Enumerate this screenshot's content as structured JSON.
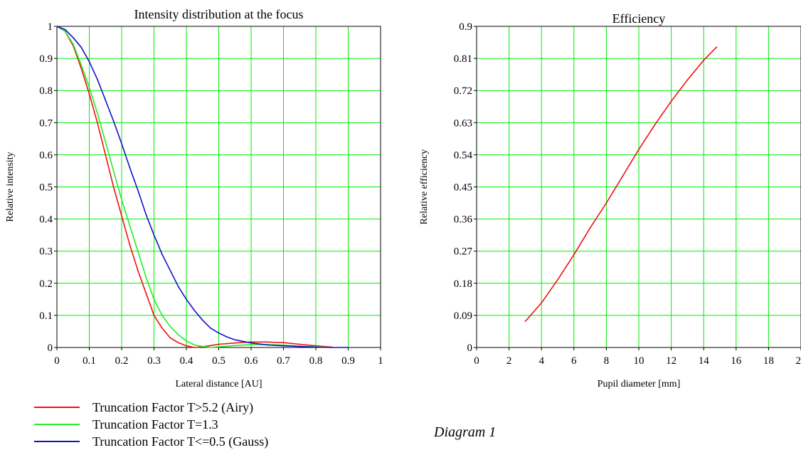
{
  "caption": "Diagram 1",
  "colors": {
    "grid": "#00ee00",
    "axis": "#000000",
    "airy": "#ee1111",
    "t13": "#22ee22",
    "gauss": "#1111cc"
  },
  "chart_data": [
    {
      "type": "line",
      "title": "Intensity distribution at the focus",
      "xlabel": "Lateral distance [AU]",
      "ylabel": "Relative intensity",
      "xlim": [
        0,
        1
      ],
      "ylim": [
        0,
        1
      ],
      "grid": true,
      "x_ticks": [
        0,
        0.1,
        0.2,
        0.3,
        0.4,
        0.5,
        0.6,
        0.7,
        0.8,
        0.9,
        1
      ],
      "x_tick_labels": [
        "0",
        "0.1",
        "0.2",
        "0.3",
        "0.4",
        "0.5",
        "0.6",
        "0.7",
        "0.8",
        "0.9",
        "1"
      ],
      "y_ticks": [
        0,
        0.1,
        0.2,
        0.3,
        0.4,
        0.5,
        0.6,
        0.7,
        0.8,
        0.9,
        1
      ],
      "y_tick_labels": [
        "0",
        "0.1",
        "0.2",
        "0.3",
        "0.4",
        "0.5",
        "0.6",
        "0.7",
        "0.8",
        "0.9",
        "1"
      ],
      "legend_position": "below",
      "series": [
        {
          "name": "Truncation Factor  T>5.2 (Airy)",
          "color": "#ee1111",
          "x": [
            0,
            0.025,
            0.05,
            0.075,
            0.1,
            0.125,
            0.15,
            0.175,
            0.2,
            0.225,
            0.25,
            0.275,
            0.3,
            0.325,
            0.35,
            0.375,
            0.4,
            0.425,
            0.45,
            0.475,
            0.5,
            0.55,
            0.6,
            0.65,
            0.7,
            0.75,
            0.8,
            0.85
          ],
          "y": [
            1.0,
            0.985,
            0.94,
            0.87,
            0.79,
            0.7,
            0.6,
            0.5,
            0.41,
            0.32,
            0.24,
            0.17,
            0.1,
            0.06,
            0.03,
            0.015,
            0.005,
            0.0,
            0.002,
            0.006,
            0.01,
            0.014,
            0.017,
            0.017,
            0.015,
            0.01,
            0.005,
            0.001
          ]
        },
        {
          "name": "Truncation Factor  T=1.3",
          "color": "#22ee22",
          "x": [
            0,
            0.025,
            0.05,
            0.075,
            0.1,
            0.125,
            0.15,
            0.175,
            0.2,
            0.225,
            0.25,
            0.275,
            0.3,
            0.325,
            0.35,
            0.375,
            0.4,
            0.425,
            0.45,
            0.475,
            0.5,
            0.55,
            0.6,
            0.65,
            0.7,
            0.75,
            0.8,
            0.85
          ],
          "y": [
            1.0,
            0.985,
            0.945,
            0.88,
            0.81,
            0.73,
            0.64,
            0.55,
            0.46,
            0.38,
            0.3,
            0.22,
            0.15,
            0.1,
            0.065,
            0.04,
            0.02,
            0.008,
            0.003,
            0.0,
            0.002,
            0.006,
            0.009,
            0.009,
            0.007,
            0.004,
            0.002,
            0.0
          ]
        },
        {
          "name": "Truncation Factor  T<=0.5 (Gauss)",
          "color": "#1111cc",
          "x": [
            0,
            0.025,
            0.05,
            0.075,
            0.1,
            0.125,
            0.15,
            0.175,
            0.2,
            0.225,
            0.25,
            0.275,
            0.3,
            0.325,
            0.35,
            0.375,
            0.4,
            0.425,
            0.45,
            0.475,
            0.5,
            0.525,
            0.55,
            0.6,
            0.65,
            0.7,
            0.75,
            0.8,
            0.85,
            0.9
          ],
          "y": [
            1.0,
            0.99,
            0.965,
            0.935,
            0.89,
            0.835,
            0.77,
            0.705,
            0.635,
            0.56,
            0.49,
            0.415,
            0.35,
            0.29,
            0.24,
            0.19,
            0.15,
            0.115,
            0.085,
            0.06,
            0.045,
            0.033,
            0.024,
            0.014,
            0.008,
            0.005,
            0.003,
            0.001,
            0.0,
            0.0
          ]
        }
      ]
    },
    {
      "type": "line",
      "title": "Efficiency",
      "xlabel": "Pupil diameter [mm]",
      "ylabel": "Relative efficiency",
      "xlim": [
        0,
        20
      ],
      "ylim": [
        0,
        0.9
      ],
      "grid": true,
      "x_ticks": [
        0,
        2,
        4,
        6,
        8,
        10,
        12,
        14,
        16,
        18,
        20
      ],
      "x_tick_labels": [
        "0",
        "2",
        "4",
        "6",
        "8",
        "10",
        "12",
        "14",
        "16",
        "18",
        "20"
      ],
      "y_ticks": [
        0,
        0.09,
        0.18,
        0.27,
        0.36,
        0.45,
        0.54,
        0.63,
        0.72,
        0.81,
        0.9
      ],
      "y_tick_labels": [
        "0",
        "0.09",
        "0.18",
        "0.27",
        "0.36",
        "0.45",
        "0.54",
        "0.63",
        "0.72",
        "0.81",
        "0.9"
      ],
      "series": [
        {
          "color": "#ee1111",
          "x": [
            3,
            4,
            5,
            6,
            7,
            8,
            9,
            10,
            11,
            12,
            13,
            14,
            14.8
          ],
          "y": [
            0.073,
            0.125,
            0.19,
            0.26,
            0.335,
            0.405,
            0.48,
            0.555,
            0.625,
            0.69,
            0.75,
            0.805,
            0.842
          ]
        }
      ]
    }
  ]
}
